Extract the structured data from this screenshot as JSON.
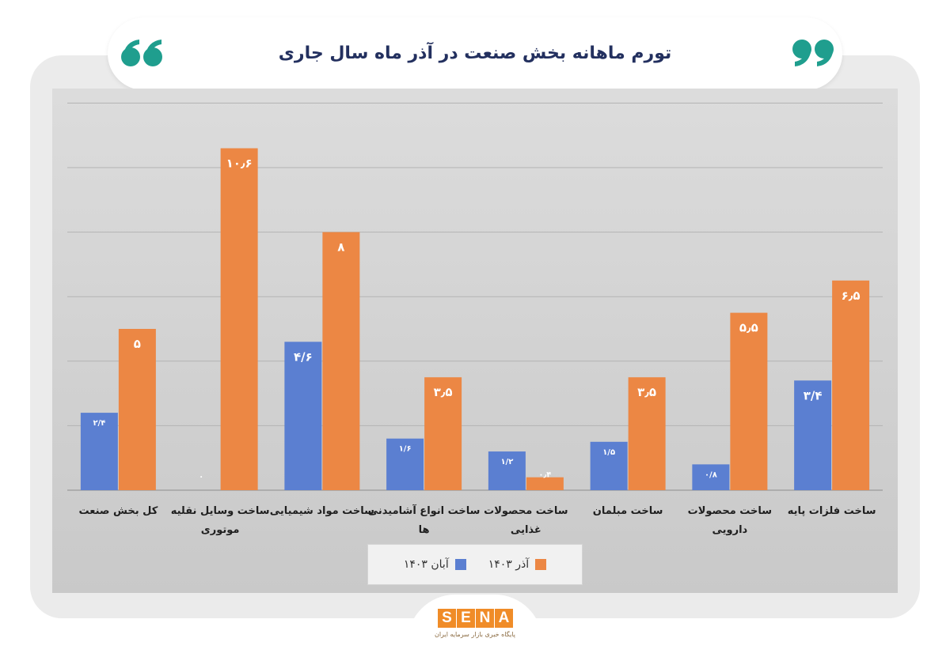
{
  "title": "تورم ماهانه بخش صنعت در آذر ماه سال جاری",
  "quote_icon": "quotation-mark-icon",
  "logo": {
    "text": "SENA",
    "subtitle": "پایگاه خبری بازار سرمایه ایران"
  },
  "colors": {
    "aban": "#5b7fd1",
    "azar": "#ec8744",
    "title": "#23305f",
    "quote": "#1f9e8e"
  },
  "chart_data": {
    "type": "bar",
    "categories": [
      "ساخت فلزات پایه",
      "ساخت محصولات دارویی",
      "ساخت مبلمان",
      "ساخت محصولات غذایی",
      "ساخت انواع آشامیدنی ها",
      "ساخت مواد شیمیایی",
      "ساخت وسایل نقلیه موتوری",
      "کل بخش صنعت"
    ],
    "category_lines": [
      [
        "ساخت فلزات پایه"
      ],
      [
        "ساخت محصولات",
        "دارویی"
      ],
      [
        "ساخت مبلمان"
      ],
      [
        "ساخت محصولات",
        "غذایی"
      ],
      [
        "ساخت انواع آشامیدنی",
        "ها"
      ],
      [
        "ساخت مواد شیمیایی"
      ],
      [
        "ساخت وسایل نقلیه",
        "موتوری"
      ],
      [
        "کل بخش صنعت"
      ]
    ],
    "series": [
      {
        "name": "آبان ۱۴۰۳",
        "values": [
          3.4,
          0.8,
          1.5,
          1.2,
          1.6,
          4.6,
          0,
          2.4
        ],
        "labels": [
          "۳/۴",
          "۰/۸",
          "۱/۵",
          "۱/۲",
          "۱/۶",
          "۴/۶",
          "۰",
          "۲/۴"
        ]
      },
      {
        "name": "آذر ۱۴۰۳",
        "values": [
          6.5,
          5.5,
          3.5,
          0.4,
          3.5,
          8,
          10.6,
          5
        ],
        "labels": [
          "۶٫۵",
          "۵٫۵",
          "۳٫۵",
          "۰٫۴",
          "۳٫۵",
          "۸",
          "۱۰٫۶",
          "۵"
        ]
      }
    ],
    "ylim": [
      0,
      12
    ],
    "grid": true,
    "legend_position": "bottom-center",
    "category_order": "right-to-left"
  }
}
